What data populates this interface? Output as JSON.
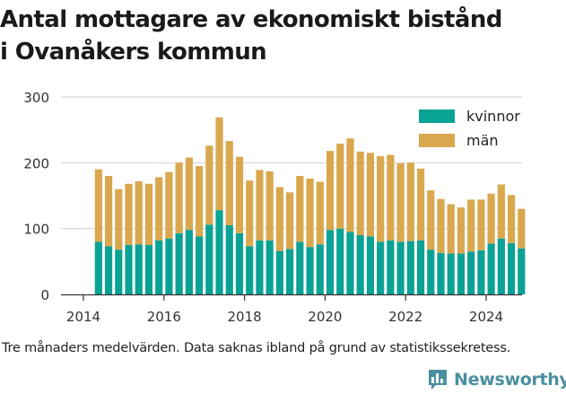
{
  "title_lines": [
    "Antal mottagare av ekonomiskt bistånd",
    "i Ovanåkers kommun"
  ],
  "footnote": "Tre månaders medelvärden. Data saknas ibland på grund av statistikssekretess.",
  "brand": {
    "name": "Newsworthy",
    "color": "#4a8fa0",
    "icon": "bar-chart-chat-bubble-icon"
  },
  "chart_data": {
    "type": "bar",
    "stacked": true,
    "y_ticks": [
      0,
      100,
      200,
      300
    ],
    "ylim": [
      0,
      300
    ],
    "x_ticks": [
      "2014",
      "2016",
      "2018",
      "2020",
      "2022",
      "2024"
    ],
    "grid": true,
    "legend_position": "top-right",
    "periods": [
      "2014-Q2",
      "2014-Q3",
      "2014-Q4",
      "2015-Q1",
      "2015-Q2",
      "2015-Q3",
      "2015-Q4",
      "2016-Q1",
      "2016-Q2",
      "2016-Q3",
      "2016-Q4",
      "2017-Q1",
      "2017-Q2",
      "2017-Q3",
      "2017-Q4",
      "2018-Q1",
      "2018-Q2",
      "2018-Q3",
      "2018-Q4",
      "2019-Q1",
      "2019-Q2",
      "2019-Q3",
      "2019-Q4",
      "2020-Q1",
      "2020-Q2",
      "2020-Q3",
      "2020-Q4",
      "2021-Q1",
      "2021-Q2",
      "2021-Q3",
      "2021-Q4",
      "2022-Q1",
      "2022-Q2",
      "2022-Q3",
      "2022-Q4",
      "2023-Q1",
      "2023-Q2",
      "2023-Q3",
      "2023-Q4",
      "2024-Q1",
      "2024-Q2",
      "2024-Q3",
      "2024-Q4"
    ],
    "series": [
      {
        "name": "kvinnor",
        "color": "#0aa295",
        "values": [
          80,
          73,
          68,
          75,
          76,
          75,
          82,
          85,
          93,
          98,
          88,
          106,
          128,
          105,
          93,
          73,
          82,
          82,
          66,
          69,
          80,
          72,
          76,
          98,
          100,
          95,
          90,
          88,
          80,
          82,
          80,
          81,
          82,
          68,
          63,
          62,
          62,
          65,
          67,
          77,
          85,
          78,
          70
        ]
      },
      {
        "name": "män",
        "color": "#d9a84e",
        "values": [
          110,
          107,
          92,
          93,
          96,
          93,
          96,
          101,
          107,
          110,
          107,
          120,
          141,
          128,
          116,
          100,
          107,
          105,
          97,
          86,
          100,
          104,
          95,
          120,
          129,
          142,
          127,
          127,
          130,
          130,
          119,
          119,
          109,
          90,
          82,
          75,
          70,
          79,
          77,
          76,
          82,
          73,
          60
        ]
      }
    ]
  }
}
